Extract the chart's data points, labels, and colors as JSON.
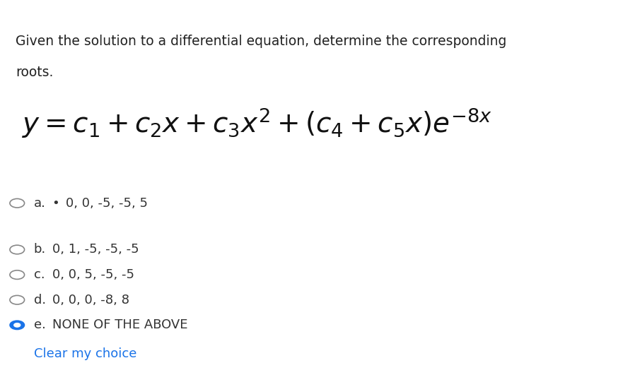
{
  "background_color": "#ffffff",
  "question_text_line1": "Given the solution to a differential equation, determine the corresponding",
  "question_text_line2": "roots.",
  "options": [
    {
      "label": "a.",
      "text": "0, 0, -5, -5, 5",
      "has_bullet": true,
      "selected": false
    },
    {
      "label": "b.",
      "text": "0, 1, -5, -5, -5",
      "has_bullet": false,
      "selected": false
    },
    {
      "label": "c.",
      "text": "0, 0, 5, -5, -5",
      "has_bullet": false,
      "selected": false
    },
    {
      "label": "d.",
      "text": "0, 0, 0, -8, 8",
      "has_bullet": false,
      "selected": false
    },
    {
      "label": "e.",
      "text": "NONE OF THE ABOVE",
      "has_bullet": false,
      "selected": true
    }
  ],
  "clear_text": "Clear my choice",
  "clear_color": "#1a73e8",
  "question_fontsize": 13.5,
  "equation_fontsize": 28,
  "option_fontsize": 13,
  "text_color": "#222222",
  "option_text_color": "#333333",
  "circle_color_empty": "#888888",
  "circle_color_filled": "#1a73e8"
}
